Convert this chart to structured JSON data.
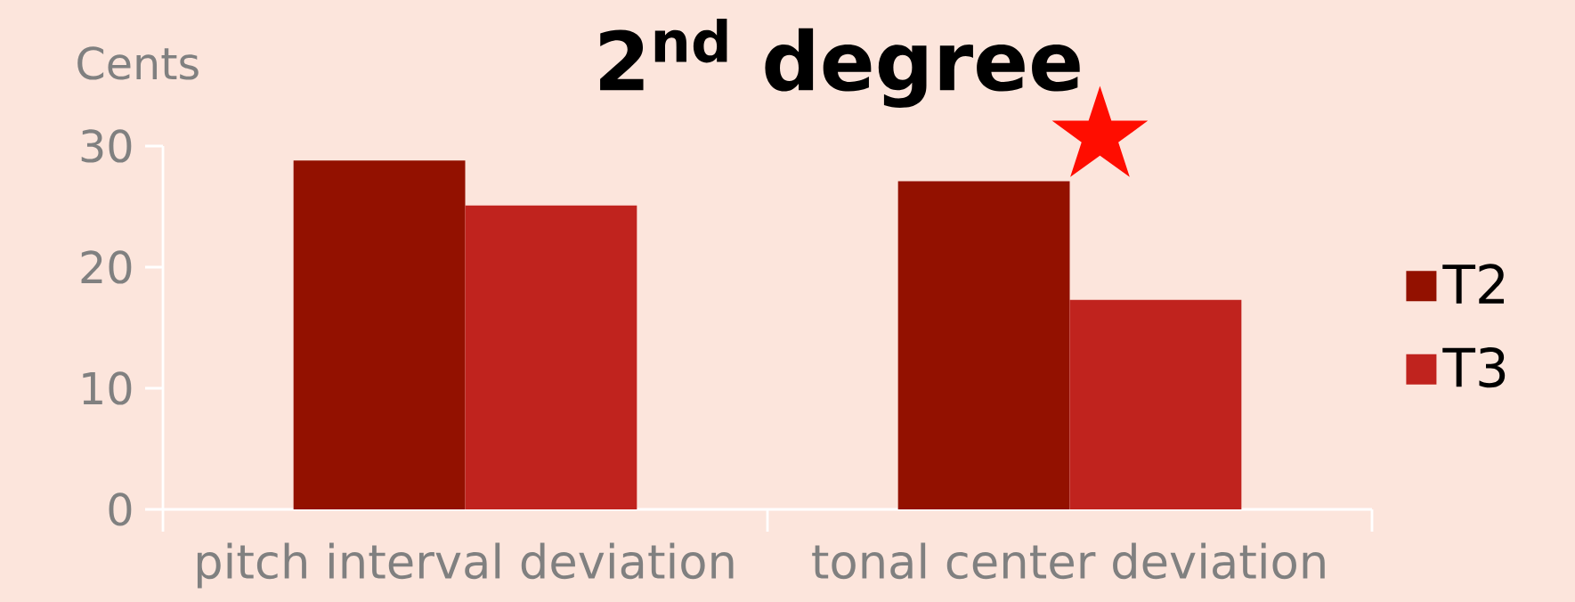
{
  "chart_data": {
    "type": "bar",
    "title": "2$^{nd}$ degree",
    "ylabel": "Cents",
    "categories": [
      "pitch interval deviation",
      "tonal center deviation"
    ],
    "series": [
      {
        "name": "T2",
        "color": "#931100",
        "values": [
          28.8,
          27.1
        ]
      },
      {
        "name": "T3",
        "color": "#c0231e",
        "values": [
          25.1,
          17.3
        ]
      }
    ],
    "ylim": [
      0,
      30
    ],
    "yticks": [
      0,
      10,
      20,
      30
    ],
    "grid": false,
    "legend": "right",
    "annotations": [
      "★"
    ]
  }
}
